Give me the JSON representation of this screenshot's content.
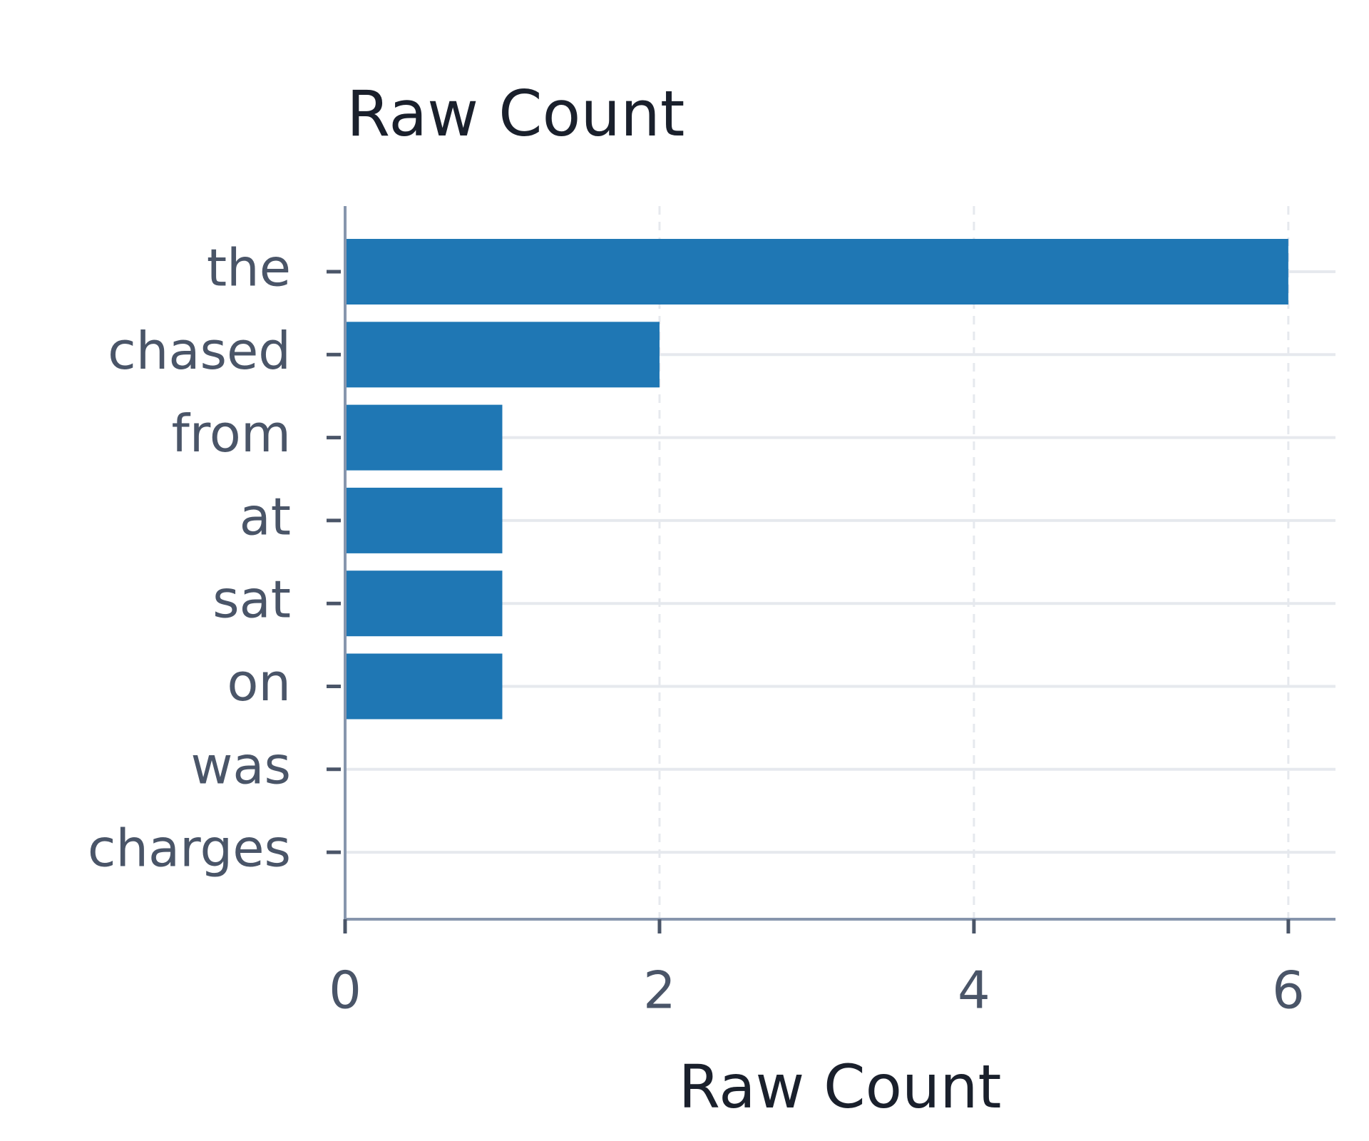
{
  "chart_data": {
    "type": "bar",
    "orientation": "horizontal",
    "title": "Raw Count",
    "x_label": "Raw Count",
    "categories": [
      "the",
      "chased",
      "from",
      "at",
      "sat",
      "on",
      "was",
      "charges"
    ],
    "values": [
      6,
      2,
      1,
      1,
      1,
      1,
      0,
      0
    ],
    "color": "#1f77b4",
    "xlim": [
      0,
      6.3
    ],
    "xticks": [
      0,
      2,
      4,
      6
    ],
    "grid": true
  }
}
